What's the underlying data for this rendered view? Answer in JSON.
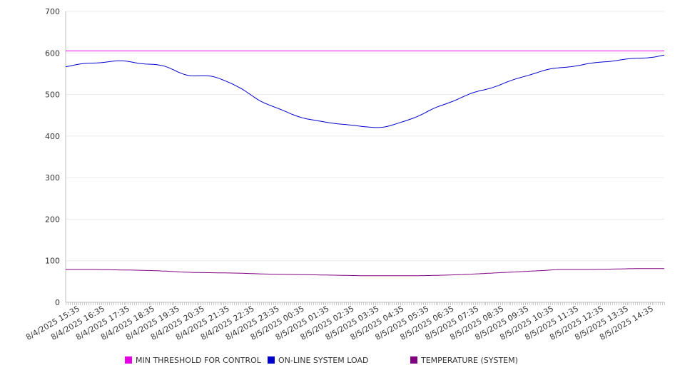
{
  "chart_data": {
    "type": "line",
    "ylim": [
      0,
      700
    ],
    "yticks": [
      0,
      100,
      200,
      300,
      400,
      500,
      600,
      700
    ],
    "xlim": [
      "8/4/2025 15:00",
      "8/5/2025 15:00"
    ],
    "categories": [
      "8/4/2025 15:35",
      "8/4/2025 16:35",
      "8/4/2025 17:35",
      "8/4/2025 18:35",
      "8/4/2025 19:35",
      "8/4/2025 20:35",
      "8/4/2025 21:35",
      "8/4/2025 22:35",
      "8/4/2025 23:35",
      "8/5/2025 00:35",
      "8/5/2025 01:35",
      "8/5/2025 02:35",
      "8/5/2025 03:35",
      "8/5/2025 04:35",
      "8/5/2025 05:35",
      "8/5/2025 06:35",
      "8/5/2025 07:35",
      "8/5/2025 08:35",
      "8/5/2025 09:35",
      "8/5/2025 10:35",
      "8/5/2025 11:35",
      "8/5/2025 12:35",
      "8/5/2025 13:35",
      "8/5/2025 14:35"
    ],
    "x": [
      "8/4/2025 15:00",
      "8/4/2025 16:00",
      "8/4/2025 17:00",
      "8/4/2025 18:00",
      "8/4/2025 19:00",
      "8/4/2025 20:00",
      "8/4/2025 21:00",
      "8/4/2025 22:00",
      "8/4/2025 23:00",
      "8/5/2025 00:00",
      "8/5/2025 01:00",
      "8/5/2025 02:00",
      "8/5/2025 03:00",
      "8/5/2025 04:00",
      "8/5/2025 05:00",
      "8/5/2025 06:00",
      "8/5/2025 07:00",
      "8/5/2025 08:00",
      "8/5/2025 09:00",
      "8/5/2025 10:00",
      "8/5/2025 11:00",
      "8/5/2025 12:00",
      "8/5/2025 13:00",
      "8/5/2025 14:00",
      "8/5/2025 15:00"
    ],
    "series": [
      {
        "name": "MIN THRESHOLD FOR CONTROL",
        "color": "#e600e6",
        "values": [
          605,
          605,
          605,
          605,
          605,
          605,
          605,
          605,
          605,
          605,
          605,
          605,
          605,
          605,
          605,
          605,
          605,
          605,
          605,
          605,
          605,
          605,
          605,
          605,
          605
        ]
      },
      {
        "name": "ON-LINE SYSTEM LOAD",
        "color": "#0000cc",
        "values": [
          568,
          576,
          580,
          575,
          567,
          546,
          542,
          514,
          480,
          455,
          436,
          430,
          423,
          424,
          445,
          472,
          497,
          515,
          535,
          556,
          566,
          573,
          582,
          588,
          594
        ]
      },
      {
        "name": "TEMPERATURE (SYSTEM)",
        "color": "#800080",
        "values": [
          79,
          79,
          78,
          77,
          75,
          72,
          71,
          70,
          68,
          67,
          66,
          65,
          64,
          64,
          64,
          65,
          67,
          70,
          73,
          76,
          79,
          79,
          80,
          81,
          81
        ]
      }
    ],
    "legend_position": "bottom",
    "grid": "horizontal"
  }
}
